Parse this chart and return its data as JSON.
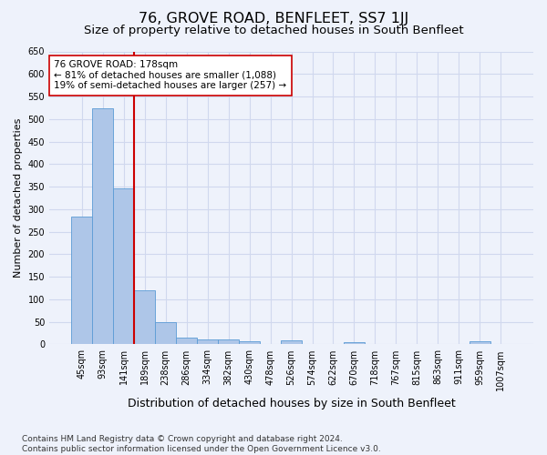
{
  "title": "76, GROVE ROAD, BENFLEET, SS7 1JJ",
  "subtitle": "Size of property relative to detached houses in South Benfleet",
  "xlabel": "Distribution of detached houses by size in South Benfleet",
  "ylabel": "Number of detached properties",
  "bar_color": "#aec6e8",
  "bar_edge_color": "#5b9bd5",
  "background_color": "#eef2fb",
  "grid_color": "#d0d8ee",
  "categories": [
    "45sqm",
    "93sqm",
    "141sqm",
    "189sqm",
    "238sqm",
    "286sqm",
    "334sqm",
    "382sqm",
    "430sqm",
    "478sqm",
    "526sqm",
    "574sqm",
    "622sqm",
    "670sqm",
    "718sqm",
    "767sqm",
    "815sqm",
    "863sqm",
    "911sqm",
    "959sqm",
    "1007sqm"
  ],
  "values": [
    283,
    524,
    347,
    121,
    49,
    16,
    11,
    10,
    6,
    0,
    8,
    0,
    0,
    5,
    0,
    0,
    0,
    0,
    0,
    6,
    0
  ],
  "vline_x_idx": 2.5,
  "vline_color": "#cc0000",
  "annotation_line1": "76 GROVE ROAD: 178sqm",
  "annotation_line2": "← 81% of detached houses are smaller (1,088)",
  "annotation_line3": "19% of semi-detached houses are larger (257) →",
  "annotation_box_color": "#ffffff",
  "annotation_box_edge": "#cc0000",
  "ylim": [
    0,
    650
  ],
  "yticks": [
    0,
    50,
    100,
    150,
    200,
    250,
    300,
    350,
    400,
    450,
    500,
    550,
    600,
    650
  ],
  "footnote": "Contains HM Land Registry data © Crown copyright and database right 2024.\nContains public sector information licensed under the Open Government Licence v3.0.",
  "title_fontsize": 11.5,
  "subtitle_fontsize": 9.5,
  "xlabel_fontsize": 9,
  "ylabel_fontsize": 8,
  "tick_fontsize": 7,
  "annotation_fontsize": 7.5,
  "footnote_fontsize": 6.5
}
